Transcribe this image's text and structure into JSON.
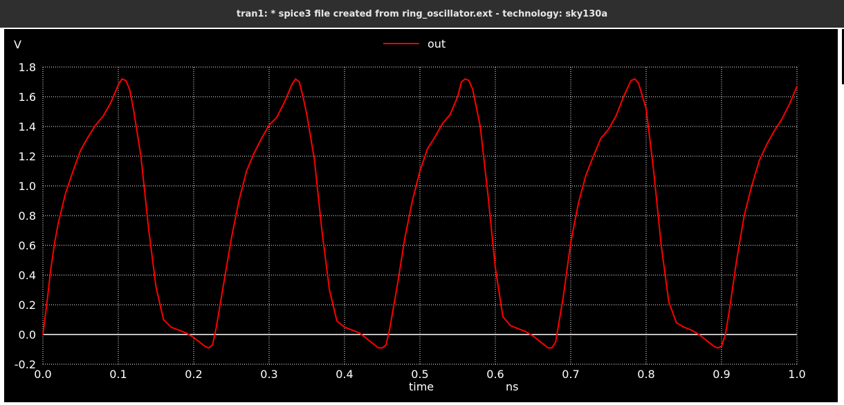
{
  "window": {
    "title": "tran1: * spice3 file created from ring_oscillator.ext - technology: sky130a"
  },
  "colors": {
    "background": "#000000",
    "grid": "#ffffff",
    "text": "#ffffff",
    "series_out": "#ff0000",
    "zero_line": "#ffffff"
  },
  "chart_data": {
    "type": "line",
    "ylabel": "V",
    "xlabel": "time",
    "xunit": "ns",
    "xlim": [
      0.0,
      1.0
    ],
    "ylim": [
      -0.2,
      1.8
    ],
    "grid": true,
    "grid_style": "dotted",
    "legend_placement": "top-center",
    "x_ticks": [
      "0.0",
      "0.1",
      "0.2",
      "0.3",
      "0.4",
      "0.5",
      "0.6",
      "0.7",
      "0.8",
      "0.9",
      "1.0"
    ],
    "y_ticks": [
      "-0.2",
      "0.0",
      "0.2",
      "0.4",
      "0.6",
      "0.8",
      "1.0",
      "1.2",
      "1.4",
      "1.6",
      "1.8"
    ],
    "series": [
      {
        "name": "out",
        "x": [
          0.0,
          0.005,
          0.01,
          0.015,
          0.02,
          0.03,
          0.04,
          0.05,
          0.06,
          0.07,
          0.08,
          0.09,
          0.1,
          0.105,
          0.11,
          0.115,
          0.12,
          0.13,
          0.14,
          0.15,
          0.16,
          0.17,
          0.18,
          0.19,
          0.2,
          0.21,
          0.215,
          0.22,
          0.225,
          0.23,
          0.24,
          0.25,
          0.26,
          0.27,
          0.28,
          0.29,
          0.3,
          0.31,
          0.32,
          0.33,
          0.335,
          0.34,
          0.345,
          0.35,
          0.36,
          0.37,
          0.38,
          0.39,
          0.4,
          0.41,
          0.42,
          0.43,
          0.44,
          0.445,
          0.45,
          0.455,
          0.46,
          0.47,
          0.48,
          0.49,
          0.5,
          0.51,
          0.52,
          0.53,
          0.54,
          0.55,
          0.555,
          0.56,
          0.565,
          0.57,
          0.58,
          0.59,
          0.6,
          0.61,
          0.62,
          0.63,
          0.64,
          0.65,
          0.66,
          0.67,
          0.675,
          0.68,
          0.69,
          0.7,
          0.71,
          0.72,
          0.73,
          0.74,
          0.75,
          0.76,
          0.77,
          0.78,
          0.785,
          0.79,
          0.8,
          0.81,
          0.82,
          0.83,
          0.84,
          0.85,
          0.86,
          0.87,
          0.88,
          0.89,
          0.895,
          0.9,
          0.905,
          0.91,
          0.92,
          0.93,
          0.94,
          0.95,
          0.96,
          0.97,
          0.98,
          0.99,
          1.0
        ],
        "y": [
          0.0,
          0.2,
          0.42,
          0.6,
          0.74,
          0.95,
          1.1,
          1.24,
          1.33,
          1.41,
          1.47,
          1.56,
          1.68,
          1.72,
          1.71,
          1.65,
          1.52,
          1.2,
          0.72,
          0.32,
          0.1,
          0.05,
          0.03,
          0.01,
          -0.02,
          -0.06,
          -0.08,
          -0.09,
          -0.07,
          0.05,
          0.35,
          0.65,
          0.9,
          1.1,
          1.22,
          1.32,
          1.41,
          1.46,
          1.56,
          1.68,
          1.72,
          1.7,
          1.6,
          1.48,
          1.18,
          0.7,
          0.3,
          0.09,
          0.05,
          0.03,
          0.01,
          -0.03,
          -0.07,
          -0.09,
          -0.09,
          -0.07,
          0.04,
          0.33,
          0.65,
          0.9,
          1.1,
          1.25,
          1.33,
          1.42,
          1.48,
          1.6,
          1.7,
          1.72,
          1.71,
          1.65,
          1.4,
          0.95,
          0.45,
          0.12,
          0.06,
          0.04,
          0.02,
          -0.01,
          -0.05,
          -0.09,
          -0.09,
          -0.05,
          0.25,
          0.62,
          0.88,
          1.07,
          1.2,
          1.32,
          1.38,
          1.47,
          1.6,
          1.71,
          1.72,
          1.69,
          1.52,
          1.1,
          0.6,
          0.22,
          0.08,
          0.05,
          0.03,
          0.0,
          -0.04,
          -0.08,
          -0.09,
          -0.08,
          0.0,
          0.15,
          0.5,
          0.8,
          1.0,
          1.17,
          1.28,
          1.37,
          1.45,
          1.55,
          1.67
        ]
      }
    ]
  }
}
